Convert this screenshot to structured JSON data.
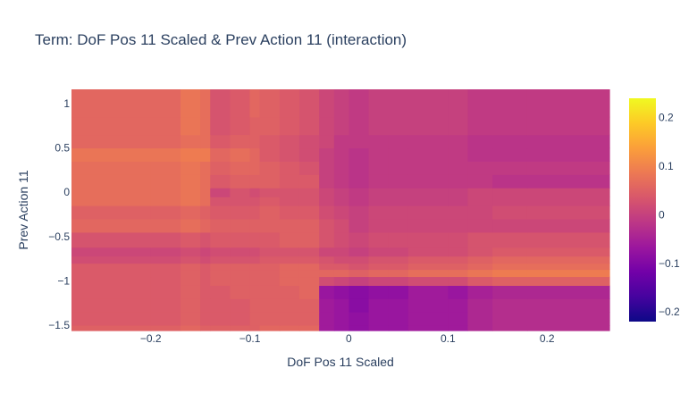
{
  "chart_data": {
    "type": "heatmap",
    "title": "Term: DoF Pos 11 Scaled & Prev Action 11 (interaction)",
    "xlabel": "DoF Pos 11 Scaled",
    "ylabel": "Prev Action 11",
    "x_range": [
      -0.28,
      0.263
    ],
    "y_range": [
      -1.56,
      1.16
    ],
    "x_ticks": [
      -0.2,
      -0.1,
      0,
      0.1,
      0.2
    ],
    "x_tick_labels": [
      "−0.2",
      "−0.1",
      "0",
      "0.1",
      "0.2"
    ],
    "y_ticks": [
      -1.5,
      -1,
      -0.5,
      0,
      0.5,
      1
    ],
    "y_tick_labels": [
      "−1.5",
      "−1",
      "−0.5",
      "0",
      "0.5",
      "1"
    ],
    "colorscale": "plasma",
    "color_range": [
      -0.22,
      0.24
    ],
    "colorbar_ticks": [
      -0.2,
      -0.1,
      0,
      0.1,
      0.2
    ],
    "colorbar_tick_labels": [
      "−0.2",
      "−0.1",
      "0",
      "0.1",
      "0.2"
    ],
    "x_edges": [
      -0.28,
      -0.2,
      -0.17,
      -0.15,
      -0.14,
      -0.12,
      -0.1,
      -0.09,
      -0.07,
      -0.05,
      -0.03,
      -0.015,
      0,
      0.02,
      0.04,
      0.06,
      0.1,
      0.12,
      0.145,
      0.18,
      0.263
    ],
    "y_edges": [
      -1.56,
      -1.5,
      -1.35,
      -1.2,
      -1.05,
      -0.95,
      -0.87,
      -0.8,
      -0.72,
      -0.62,
      -0.45,
      -0.3,
      -0.15,
      -0.05,
      0.05,
      0.2,
      0.35,
      0.5,
      0.65,
      0.85,
      1.16
    ],
    "z": [
      [
        0.05,
        0.05,
        0.06,
        0.05,
        0.05,
        0.05,
        0.05,
        0.06,
        0.06,
        0.06,
        -0.06,
        -0.07,
        -0.08,
        -0.07,
        -0.07,
        -0.06,
        -0.06,
        -0.04,
        -0.03,
        -0.03
      ],
      [
        0.04,
        0.04,
        0.05,
        0.04,
        0.04,
        0.04,
        0.05,
        0.05,
        0.05,
        0.05,
        -0.06,
        -0.07,
        -0.08,
        -0.07,
        -0.07,
        -0.06,
        -0.06,
        -0.04,
        -0.03,
        -0.03
      ],
      [
        0.04,
        0.04,
        0.05,
        0.04,
        0.04,
        0.04,
        0.05,
        0.05,
        0.05,
        0.05,
        -0.06,
        -0.07,
        -0.09,
        -0.07,
        -0.07,
        -0.06,
        -0.06,
        -0.04,
        -0.03,
        -0.03
      ],
      [
        0.04,
        0.04,
        0.05,
        0.04,
        0.04,
        0.05,
        0.05,
        0.05,
        0.05,
        0.06,
        -0.07,
        -0.08,
        -0.09,
        -0.08,
        -0.08,
        -0.06,
        -0.07,
        -0.05,
        -0.04,
        -0.04
      ],
      [
        0.04,
        0.04,
        0.05,
        0.04,
        0.05,
        0.05,
        0.05,
        0.05,
        0.06,
        0.06,
        0.02,
        0.01,
        0.0,
        0.01,
        0.01,
        0.02,
        0.02,
        0.04,
        0.05,
        0.05
      ],
      [
        0.04,
        0.04,
        0.05,
        0.04,
        0.05,
        0.05,
        0.05,
        0.05,
        0.06,
        0.06,
        0.06,
        0.06,
        0.05,
        0.06,
        0.06,
        0.07,
        0.07,
        0.08,
        0.09,
        0.09
      ],
      [
        0.04,
        0.04,
        0.05,
        0.04,
        0.05,
        0.05,
        0.05,
        0.05,
        0.06,
        0.06,
        0.04,
        0.04,
        0.03,
        0.04,
        0.04,
        0.05,
        0.05,
        0.06,
        0.07,
        0.07
      ],
      [
        0.02,
        0.02,
        0.03,
        0.02,
        0.03,
        0.03,
        0.03,
        0.04,
        0.04,
        0.04,
        0.03,
        0.02,
        0.02,
        0.03,
        0.03,
        0.04,
        0.04,
        0.05,
        0.06,
        0.06
      ],
      [
        0.01,
        0.01,
        0.02,
        0.01,
        0.02,
        0.02,
        0.02,
        0.03,
        0.03,
        0.03,
        0.01,
        0.01,
        0.0,
        0.01,
        0.01,
        0.02,
        0.02,
        0.03,
        0.04,
        0.04
      ],
      [
        0.03,
        0.03,
        0.04,
        0.03,
        0.04,
        0.04,
        0.04,
        0.04,
        0.05,
        0.05,
        0.03,
        0.02,
        0.01,
        0.02,
        0.02,
        0.02,
        0.02,
        0.03,
        0.03,
        0.03
      ],
      [
        0.06,
        0.06,
        0.07,
        0.06,
        0.05,
        0.05,
        0.05,
        0.05,
        0.05,
        0.05,
        0.03,
        0.02,
        0.0,
        0.01,
        0.01,
        0.01,
        0.01,
        0.01,
        0.01,
        0.01
      ],
      [
        0.05,
        0.05,
        0.06,
        0.05,
        0.04,
        0.04,
        0.04,
        0.05,
        0.04,
        0.04,
        0.02,
        0.01,
        0.0,
        0.01,
        0.01,
        0.01,
        0.01,
        0.01,
        0.02,
        0.02
      ],
      [
        0.07,
        0.07,
        0.08,
        0.07,
        0.03,
        0.03,
        0.03,
        0.04,
        0.03,
        0.03,
        0.01,
        0.0,
        -0.01,
        0.0,
        0.0,
        0.0,
        0.0,
        0.01,
        0.01,
        0.01
      ],
      [
        0.07,
        0.07,
        0.08,
        0.07,
        0.01,
        0.03,
        0.02,
        0.03,
        0.03,
        0.03,
        0.01,
        0.0,
        -0.01,
        0.0,
        0.0,
        0.0,
        0.0,
        0.01,
        0.01,
        0.01
      ],
      [
        0.07,
        0.07,
        0.08,
        0.07,
        0.04,
        0.05,
        0.05,
        0.05,
        0.04,
        0.04,
        0.0,
        -0.01,
        -0.02,
        -0.01,
        -0.01,
        -0.01,
        -0.01,
        -0.01,
        -0.02,
        -0.02
      ],
      [
        0.07,
        0.07,
        0.08,
        0.07,
        0.05,
        0.06,
        0.06,
        0.05,
        0.04,
        0.03,
        0.0,
        -0.01,
        -0.02,
        -0.01,
        -0.01,
        -0.01,
        -0.01,
        -0.01,
        -0.01,
        -0.01
      ],
      [
        0.08,
        0.08,
        0.09,
        0.09,
        0.06,
        0.07,
        0.06,
        0.04,
        0.03,
        0.02,
        0.0,
        -0.01,
        -0.02,
        -0.01,
        -0.01,
        -0.01,
        -0.01,
        -0.02,
        -0.02,
        -0.02
      ],
      [
        0.06,
        0.06,
        0.07,
        0.07,
        0.04,
        0.05,
        0.05,
        0.04,
        0.03,
        0.02,
        0.01,
        -0.01,
        -0.01,
        -0.01,
        -0.01,
        -0.01,
        -0.01,
        -0.02,
        -0.02,
        -0.02
      ],
      [
        0.06,
        0.06,
        0.08,
        0.07,
        0.03,
        0.04,
        0.05,
        0.05,
        0.04,
        0.03,
        0.01,
        0.0,
        -0.01,
        0.0,
        0.0,
        0.0,
        0.0,
        -0.01,
        -0.01,
        -0.01
      ],
      [
        0.06,
        0.06,
        0.08,
        0.07,
        0.03,
        0.04,
        0.06,
        0.05,
        0.04,
        0.03,
        0.01,
        0.0,
        -0.01,
        0.0,
        0.0,
        0.0,
        0.0,
        -0.01,
        -0.01,
        -0.01
      ]
    ]
  }
}
